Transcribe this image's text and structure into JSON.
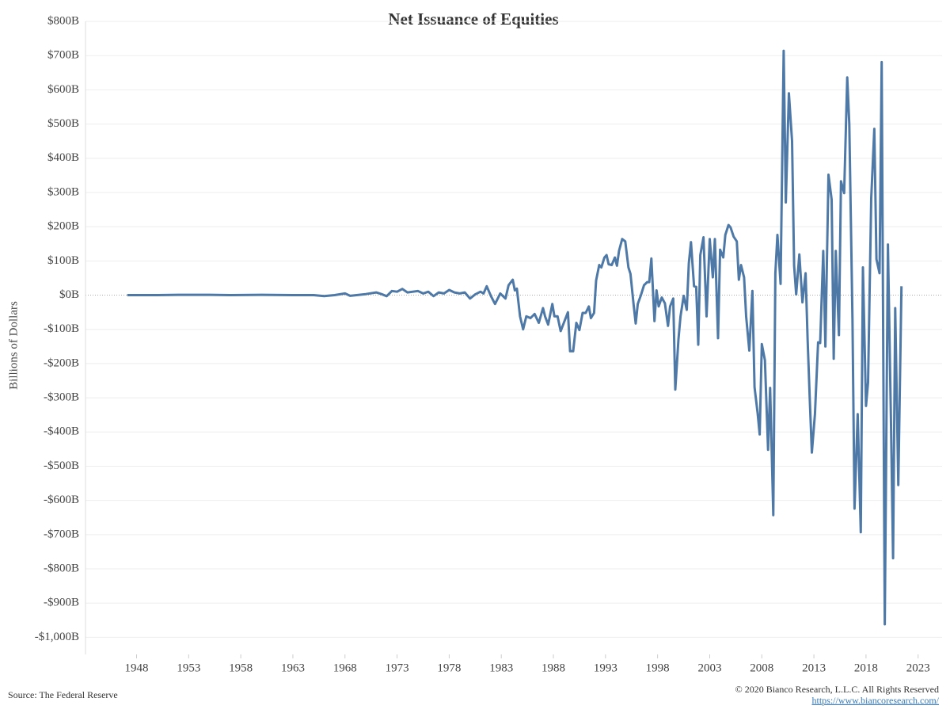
{
  "chart_data": {
    "type": "line",
    "title": "Net Issuance of Equities",
    "y_label": "Billions of Dollars",
    "source": "Source: The Federal Reserve",
    "copyright": "© 2020 Bianco Research, L.L.C. All Rights Reserved",
    "link": "https://www.biancoresearch.com/",
    "color": "#4e79a7",
    "grid": true,
    "xlim": [
      1943.1,
      2025.3
    ],
    "xticks": [
      1948,
      1953,
      1958,
      1963,
      1968,
      1973,
      1978,
      1983,
      1988,
      1993,
      1998,
      2003,
      2008,
      2013,
      2018,
      2023
    ],
    "ylim": [
      -1050,
      800
    ],
    "yticks": [
      {
        "value": 800,
        "label": "$800B"
      },
      {
        "value": 700,
        "label": "$700B"
      },
      {
        "value": 600,
        "label": "$600B"
      },
      {
        "value": 500,
        "label": "$500B"
      },
      {
        "value": 400,
        "label": "$400B"
      },
      {
        "value": 300,
        "label": "$300B"
      },
      {
        "value": 200,
        "label": "$200B"
      },
      {
        "value": 100,
        "label": "$100B"
      },
      {
        "value": 0,
        "label": "$0B"
      },
      {
        "value": -100,
        "label": "-$100B"
      },
      {
        "value": -200,
        "label": "-$200B"
      },
      {
        "value": -300,
        "label": "-$300B"
      },
      {
        "value": -400,
        "label": "-$400B"
      },
      {
        "value": -500,
        "label": "-$500B"
      },
      {
        "value": -600,
        "label": "-$600B"
      },
      {
        "value": -700,
        "label": "-$700B"
      },
      {
        "value": -800,
        "label": "-$800B"
      },
      {
        "value": -900,
        "label": "-$900B"
      },
      {
        "value": -1000,
        "label": "-$1,000B"
      }
    ],
    "x": [
      1947.1,
      1950,
      1952,
      1955,
      1957,
      1960,
      1963,
      1965,
      1966,
      1967,
      1968,
      1968.5,
      1970,
      1971,
      1971.5,
      1972,
      1972.5,
      1973,
      1973.5,
      1974,
      1975,
      1975.5,
      1976,
      1976.5,
      1977,
      1977.5,
      1978,
      1978.5,
      1979,
      1979.5,
      1980,
      1980.5,
      1981,
      1981.3,
      1981.6,
      1982.0,
      1982.4,
      1982.9,
      1983.4,
      1983.7,
      1984.1,
      1984.3,
      1984.5,
      1984.8,
      1985.1,
      1985.4,
      1985.8,
      1986.2,
      1986.6,
      1987.0,
      1987.2,
      1987.5,
      1987.9,
      1988.1,
      1988.4,
      1988.7,
      1989.0,
      1989.4,
      1989.6,
      1989.9,
      1990.2,
      1990.5,
      1990.8,
      1991.1,
      1991.4,
      1991.6,
      1991.9,
      1992.1,
      1992.4,
      1992.6,
      1992.9,
      1993.1,
      1993.3,
      1993.6,
      1993.9,
      1994.1,
      1994.3,
      1994.6,
      1994.9,
      1995.2,
      1995.4,
      1995.7,
      1995.9,
      1996.1,
      1996.4,
      1996.7,
      1997.0,
      1997.2,
      1997.4,
      1997.7,
      1997.9,
      1998.1,
      1998.4,
      1998.7,
      1999.0,
      1999.2,
      1999.5,
      1999.7,
      2000.0,
      2000.2,
      2000.5,
      2000.8,
      2001.0,
      2001.2,
      2001.5,
      2001.7,
      2001.9,
      2002.1,
      2002.4,
      2002.7,
      2003.0,
      2003.3,
      2003.5,
      2003.8,
      2004.0,
      2004.3,
      2004.5,
      2004.8,
      2005.0,
      2005.3,
      2005.6,
      2005.8,
      2006.0,
      2006.3,
      2006.5,
      2006.8,
      2007.1,
      2007.3,
      2007.6,
      2007.8,
      2008.0,
      2008.3,
      2008.6,
      2008.8,
      2009.1,
      2009.3,
      2009.5,
      2009.8,
      2010.1,
      2010.3,
      2010.6,
      2010.9,
      2011.1,
      2011.3,
      2011.6,
      2011.9,
      2012.2,
      2012.4,
      2012.6,
      2012.8,
      2013.1,
      2013.4,
      2013.6,
      2013.9,
      2014.1,
      2014.4,
      2014.7,
      2014.9,
      2015.1,
      2015.4,
      2015.6,
      2015.9,
      2016.2,
      2016.4,
      2016.7,
      2016.9,
      2017.2,
      2017.5,
      2017.7,
      2018.0,
      2018.2,
      2018.5,
      2018.8,
      2019.0,
      2019.3,
      2019.5,
      2019.8,
      2020.1,
      2020.4,
      2020.6,
      2020.8,
      2021.1,
      2021.4
    ],
    "values": [
      0,
      0,
      1,
      1,
      0,
      1,
      0,
      0,
      -3,
      0,
      5,
      -2,
      3,
      8,
      3,
      -3,
      12,
      10,
      18,
      8,
      12,
      5,
      10,
      -3,
      8,
      5,
      15,
      8,
      5,
      8,
      -10,
      2,
      10,
      5,
      26,
      -2,
      -26,
      5,
      -10,
      29,
      45,
      14,
      19,
      -62,
      -100,
      -62,
      -67,
      -55,
      -81,
      -38,
      -62,
      -86,
      -26,
      -62,
      -62,
      -105,
      -81,
      -50,
      -164,
      -164,
      -81,
      -102,
      -52,
      -52,
      -33,
      -67,
      -52,
      43,
      88,
      81,
      110,
      117,
      90,
      88,
      110,
      86,
      129,
      164,
      157,
      81,
      62,
      -29,
      -83,
      -26,
      0,
      29,
      38,
      38,
      107,
      -76,
      14,
      -33,
      -7,
      -24,
      -90,
      -33,
      -10,
      -276,
      -129,
      -62,
      -2,
      -43,
      93,
      155,
      26,
      24,
      -145,
      117,
      169,
      -62,
      164,
      52,
      164,
      -126,
      133,
      110,
      176,
      205,
      198,
      171,
      157,
      45,
      88,
      52,
      -62,
      -162,
      12,
      -269,
      -345,
      -407,
      -143,
      -190,
      -452,
      -271,
      -643,
      64,
      176,
      33,
      714,
      271,
      590,
      450,
      86,
      2,
      119,
      -21,
      64,
      -133,
      -300,
      -460,
      -348,
      -138,
      -140,
      129,
      -150,
      352,
      279,
      -186,
      129,
      -117,
      333,
      298,
      636,
      500,
      -69,
      -624,
      -348,
      -693,
      81,
      -324,
      -255,
      283,
      486,
      105,
      64,
      681,
      -962,
      148,
      -379,
      -769,
      -38,
      -555,
      26
    ]
  }
}
